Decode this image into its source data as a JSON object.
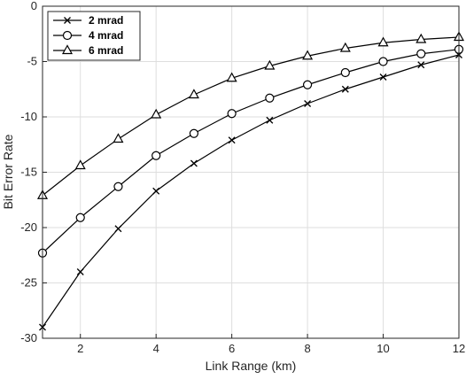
{
  "chart_data": {
    "type": "line",
    "title": "",
    "xlabel": "Link Range (km)",
    "ylabel": "Bit Error Rate",
    "xlim": [
      1,
      12
    ],
    "ylim": [
      -30,
      0
    ],
    "xticks": [
      2,
      4,
      6,
      8,
      10,
      12
    ],
    "yticks": [
      -30,
      -25,
      -20,
      -15,
      -10,
      -5,
      0
    ],
    "grid": true,
    "legend_position": "top-left",
    "x": [
      1,
      2,
      3,
      4,
      5,
      6,
      7,
      8,
      9,
      10,
      11,
      12
    ],
    "series": [
      {
        "name": "2 mrad",
        "marker": "x",
        "color": "#000000",
        "values": [
          -29.0,
          -24.0,
          -20.1,
          -16.7,
          -14.2,
          -12.1,
          -10.3,
          -8.8,
          -7.5,
          -6.4,
          -5.3,
          -4.4
        ]
      },
      {
        "name": "4 mrad",
        "marker": "circle",
        "color": "#000000",
        "values": [
          -22.3,
          -19.1,
          -16.3,
          -13.5,
          -11.5,
          -9.7,
          -8.3,
          -7.1,
          -6.0,
          -5.0,
          -4.3,
          -3.9
        ]
      },
      {
        "name": "6 mrad",
        "marker": "triangle",
        "color": "#000000",
        "values": [
          -17.1,
          -14.4,
          -12.0,
          -9.8,
          -8.0,
          -6.5,
          -5.4,
          -4.5,
          -3.8,
          -3.3,
          -3.0,
          -2.8
        ]
      }
    ]
  }
}
